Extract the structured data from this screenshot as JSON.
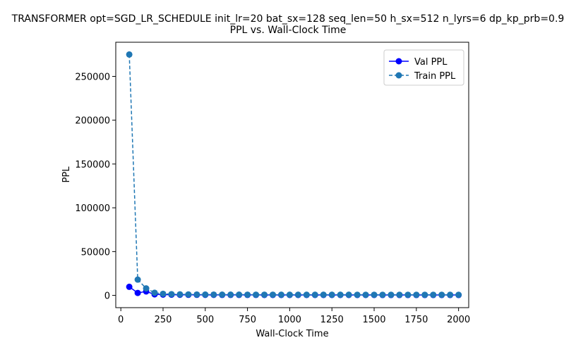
{
  "chart_data": {
    "type": "line",
    "title": "TRANSFORMER opt=SGD_LR_SCHEDULE init_lr=20 bat_sx=128 seq_len=50 h_sx=512 n_lyrs=6 dp_kp_prb=0.9",
    "subtitle": "PPL vs. Wall-Clock Time",
    "xlabel": "Wall-Clock Time",
    "ylabel": "PPL",
    "xlim": [
      -30,
      2060
    ],
    "ylim": [
      -14000,
      289000
    ],
    "xticks": [
      0,
      250,
      500,
      750,
      1000,
      1250,
      1500,
      1750,
      2000
    ],
    "yticks": [
      0,
      50000,
      100000,
      150000,
      200000,
      250000
    ],
    "xtick_labels": [
      "0",
      "250",
      "500",
      "750",
      "1000",
      "1250",
      "1500",
      "1750",
      "2000"
    ],
    "ytick_labels": [
      "0",
      "50000",
      "100000",
      "150000",
      "200000",
      "250000"
    ],
    "grid": false,
    "legend_position": "top-right",
    "series": [
      {
        "name": "Val PPL",
        "color": "#0000ff",
        "linestyle": "solid",
        "marker": "circle",
        "x": [
          50,
          100,
          150,
          200,
          250,
          300,
          350,
          400,
          450,
          500,
          550,
          600,
          650,
          700,
          750,
          800,
          850,
          900,
          950,
          1000,
          1050,
          1100,
          1150,
          1200,
          1250,
          1300,
          1350,
          1400,
          1450,
          1500,
          1550,
          1600,
          1650,
          1700,
          1750,
          1800,
          1850,
          1900,
          1950,
          2000
        ],
        "y": [
          9800,
          2800,
          4500,
          1200,
          900,
          800,
          700,
          650,
          620,
          600,
          580,
          560,
          550,
          540,
          530,
          520,
          510,
          505,
          500,
          495,
          490,
          485,
          480,
          478,
          475,
          472,
          470,
          468,
          466,
          464,
          462,
          460,
          458,
          456,
          455,
          454,
          453,
          452,
          451,
          450
        ]
      },
      {
        "name": "Train PPL",
        "color": "#1f77b4",
        "linestyle": "dashed",
        "marker": "circle",
        "x": [
          50,
          100,
          150,
          200,
          250,
          300,
          350,
          400,
          450,
          500,
          550,
          600,
          650,
          700,
          750,
          800,
          850,
          900,
          950,
          1000,
          1050,
          1100,
          1150,
          1200,
          1250,
          1300,
          1350,
          1400,
          1450,
          1500,
          1550,
          1600,
          1650,
          1700,
          1750,
          1800,
          1850,
          1900,
          1950,
          2000
        ],
        "y": [
          275000,
          18000,
          8000,
          3000,
          1800,
          1400,
          1200,
          1100,
          1000,
          950,
          900,
          870,
          850,
          830,
          810,
          800,
          790,
          780,
          770,
          760,
          750,
          745,
          740,
          735,
          730,
          725,
          720,
          715,
          710,
          705,
          700,
          695,
          690,
          685,
          680,
          678,
          676,
          674,
          672,
          670
        ]
      }
    ]
  }
}
